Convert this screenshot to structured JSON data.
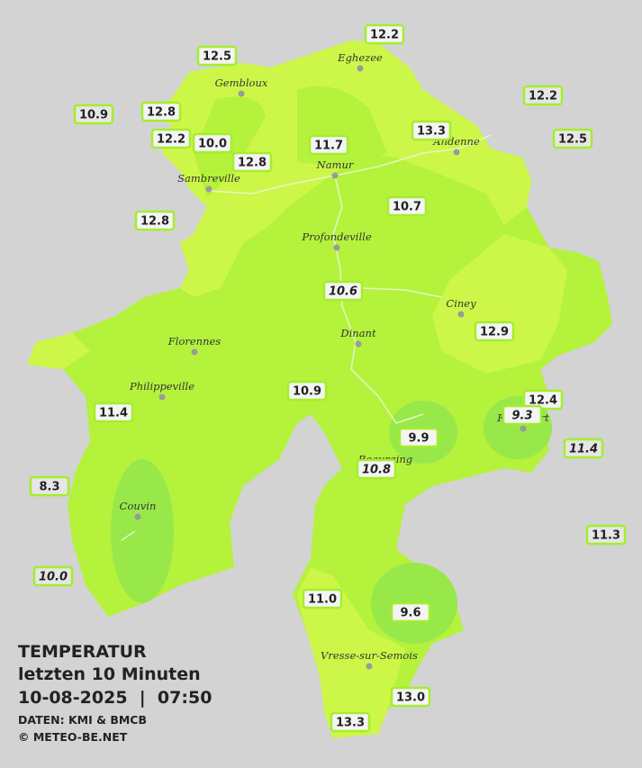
{
  "title": {
    "heading": "TEMPERATUR",
    "period": "letzten 10 Minuten",
    "datetime": "10-08-2025  |  07:50",
    "source": "DATEN: KMI & BMCB",
    "copyright": "© METEO-BE.NET"
  },
  "places": [
    "Eghezee",
    "Gembloux",
    "Andenne",
    "Namur",
    "Sambreville",
    "Profondeville",
    "Ciney",
    "Dinant",
    "Florennes",
    "Philippeville",
    "Rochefort",
    "Beauraing",
    "Couvin",
    "Vresse-sur-Semois"
  ],
  "stations": [
    "12.2",
    "12.5",
    "10.9",
    "12.8",
    "12.2",
    "12.2",
    "10.0",
    "13.3",
    "12.5",
    "11.7",
    "12.8",
    "10.7",
    "12.8",
    "10.6",
    "12.9",
    "10.9",
    "12.4",
    "9.3",
    "11.4",
    "9.9",
    "11.4",
    "10.8",
    "8.3",
    "11.3",
    "10.0",
    "11.0",
    "9.6",
    "13.0",
    "13.3"
  ]
}
